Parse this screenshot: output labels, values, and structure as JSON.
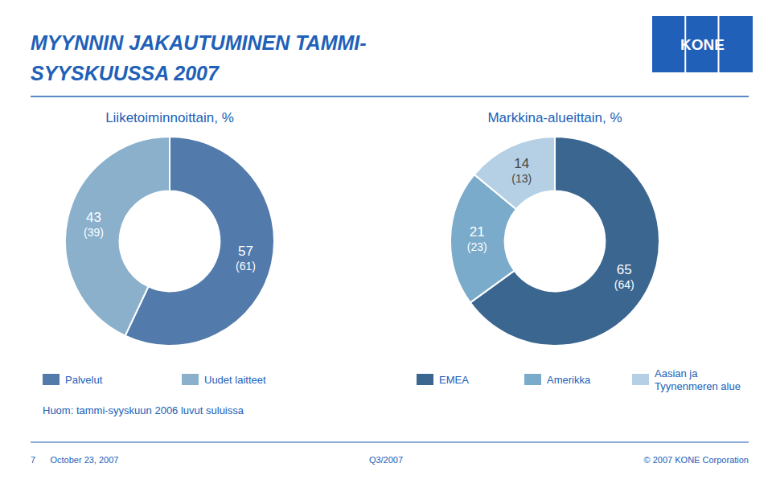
{
  "title": "MYYNNIN JAKAUTUMINEN TAMMI-\nSYYSKUUSSA 2007",
  "color": "#2060b8",
  "annotations": [
    "KONE",
    "Huom: tammi-syyskuun 2006 luvut suluissa",
    "7      October 23, 2007",
    "Q3/2007",
    "© 2007 KONE Corporation"
  ],
  "chart_data": [
    {
      "type": "donut",
      "title": "Liiketoiminnoittain, %",
      "categories": [
        "Palvelut",
        "Uudet laitteet"
      ],
      "values": [
        57,
        43
      ],
      "colors": [
        "#527aab",
        "#8ab0cc"
      ],
      "prior_values": [
        61,
        39
      ],
      "prior_value_labels": [
        "(61)",
        "(39)"
      ],
      "data_labels": true,
      "legend": "bottom"
    },
    {
      "type": "donut",
      "title": "Markkina-alueittain, %",
      "categories": [
        "EMEA",
        "Amerikka",
        "Aasian ja\nTyynenmeren alue"
      ],
      "values": [
        65,
        21,
        14
      ],
      "colors": [
        "#3a6690",
        "#7aabca",
        "#b5d0e4"
      ],
      "prior_values": [
        64,
        23,
        13
      ],
      "prior_value_labels": [
        "(64)",
        "(23)",
        "(13)"
      ],
      "data_labels": true,
      "legend": "bottom"
    }
  ]
}
